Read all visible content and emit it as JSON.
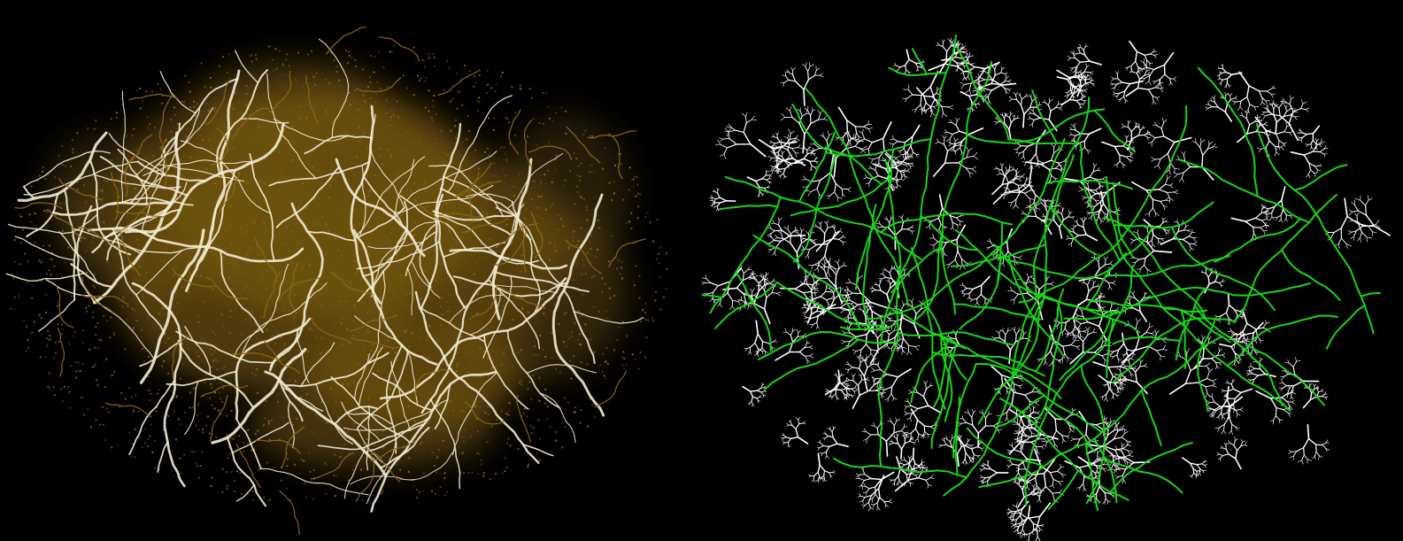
{
  "colors": {
    "background": "#000000",
    "left_tissue": "#6e5210",
    "left_tissue_bright": "#8a6818",
    "left_vessels": "#f2ecd2",
    "right_branches": "#ffffff",
    "right_main_vessels": "#19d419"
  },
  "panels": [
    {
      "id": "left",
      "description_name": "segmented-vessel-image"
    },
    {
      "id": "right",
      "description_name": "simulated-vascular-tree"
    }
  ]
}
